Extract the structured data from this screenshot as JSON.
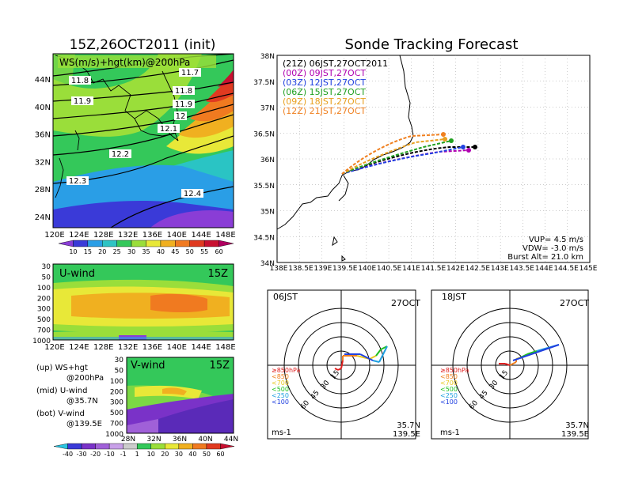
{
  "top_left": {
    "title": "15Z,26OCT2011 (init)",
    "field_label": "WS(m/s)+hgt(km)@200hPa",
    "y_ticks": [
      "44N",
      "40N",
      "36N",
      "32N",
      "28N",
      "24N"
    ],
    "x_ticks": [
      "120E",
      "124E",
      "128E",
      "132E",
      "136E",
      "140E",
      "144E",
      "148E"
    ],
    "contour_labels": [
      "11.8",
      "11.9",
      "11.7",
      "11.8",
      "11.9",
      "12",
      "12.1",
      "12.2",
      "12.3",
      "12.4"
    ],
    "colorbar": {
      "values": [
        "10",
        "15",
        "20",
        "25",
        "30",
        "35",
        "40",
        "45",
        "50",
        "55",
        "60"
      ],
      "colors": [
        "#8a3dd6",
        "#3a3ad8",
        "#2a9ee6",
        "#2ec4c4",
        "#34c85a",
        "#9ade3a",
        "#e8e838",
        "#f0b020",
        "#f07a20",
        "#e03a20",
        "#c81030",
        "#b00060"
      ]
    }
  },
  "u_wind": {
    "label": "U-wind",
    "time": "15Z",
    "y_ticks": [
      "30",
      "50",
      "100",
      "200",
      "300",
      "500",
      "700",
      "1000"
    ],
    "x_ticks": [
      "120E",
      "124E",
      "128E",
      "132E",
      "136E",
      "140E",
      "144E",
      "148E"
    ]
  },
  "v_wind": {
    "label": "V-wind",
    "time": "15Z",
    "y_ticks": [
      "30",
      "50",
      "100",
      "200",
      "300",
      "500",
      "700",
      "1000"
    ],
    "x_ticks": [
      "28N",
      "32N",
      "36N",
      "40N",
      "44N"
    ]
  },
  "legend_notes": [
    {
      "a": "(up) WS+hgt",
      "b": "@200hPa"
    },
    {
      "a": "(mid) U-wind",
      "b": "@35.7N"
    },
    {
      "a": "(bot) V-wind",
      "b": "@139.5E"
    }
  ],
  "bottom_colorbar": {
    "values": [
      "-40",
      "-30",
      "-20",
      "-10",
      "-1",
      "1",
      "10",
      "20",
      "30",
      "40",
      "50",
      "60"
    ],
    "colors": [
      "#2ac4e0",
      "#3a3ad8",
      "#7a32c8",
      "#a060d8",
      "#c8a0e8",
      "#cccccc",
      "#34c85a",
      "#9ade3a",
      "#e8e838",
      "#f0b020",
      "#f07a20",
      "#e03a20",
      "#c81030"
    ]
  },
  "tracking": {
    "title": "Sonde Tracking Forecast",
    "y_ticks": [
      "38N",
      "37.5N",
      "37N",
      "36.5N",
      "36N",
      "35.5N",
      "35N",
      "34.5N",
      "34N"
    ],
    "x_ticks": [
      "138E",
      "138.5E",
      "139E",
      "139.5E",
      "140E",
      "140.5E",
      "141E",
      "141.5E",
      "142E",
      "142.5E",
      "143E",
      "143.5E",
      "144E",
      "144.5E",
      "145E"
    ],
    "legend": [
      {
        "text": "(21Z) 06JST,27OCT2011",
        "color": "#000000"
      },
      {
        "text": "(00Z) 09JST,27OCT",
        "color": "#b000b0"
      },
      {
        "text": "(03Z) 12JST,27OCT",
        "color": "#2040e0"
      },
      {
        "text": "(06Z) 15JST,27OCT",
        "color": "#20a020"
      },
      {
        "text": "(09Z) 18JST,27OCT",
        "color": "#e8a020"
      },
      {
        "text": "(12Z) 21JST,27OCT",
        "color": "#f08020"
      }
    ],
    "params": [
      "VUP= 4.5 m/s",
      "VDW= -3.0 m/s",
      "Burst Alt= 21.0 km"
    ]
  },
  "hodo_left": {
    "time": "06JST",
    "date": "27OCT",
    "ring_labels": [
      "15",
      "30",
      "45",
      "60"
    ],
    "level_legend": [
      {
        "text": "≥850hPa",
        "color": "#e02020"
      },
      {
        "text": "<850",
        "color": "#f08020"
      },
      {
        "text": "<700",
        "color": "#e8c820"
      },
      {
        "text": "<500",
        "color": "#20c020"
      },
      {
        "text": "<250",
        "color": "#20a0e0"
      },
      {
        "text": "<100",
        "color": "#2040e0"
      }
    ],
    "lat": "35.7N",
    "lon": "139.5E",
    "unit": "ms-1"
  },
  "hodo_right": {
    "time": "18JST",
    "date": "27OCT",
    "ring_labels": [
      "15",
      "30",
      "45",
      "60"
    ],
    "lat": "35.7N",
    "lon": "139.5E",
    "unit": "ms-1"
  }
}
